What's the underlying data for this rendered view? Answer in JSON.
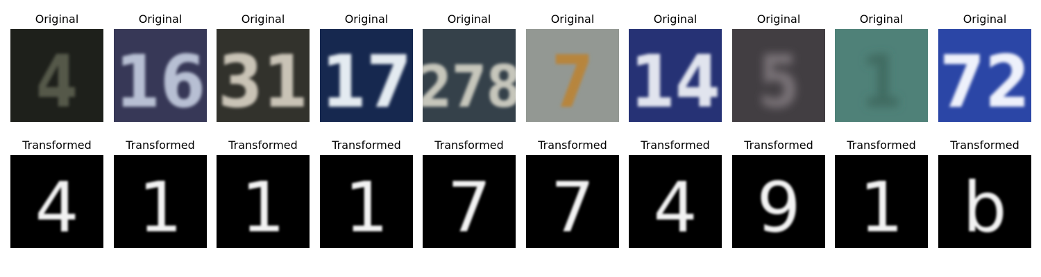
{
  "figure": {
    "top_row_title": "Original",
    "bottom_row_title": "Transformed"
  },
  "pairs": [
    {
      "original_digits": "4",
      "original_bg": "#23251f",
      "original_fg": "#55584a",
      "transformed_digit": "4"
    },
    {
      "original_digits": "16",
      "original_bg": "#3f4064",
      "original_fg": "#b7bfd3",
      "transformed_digit": "1"
    },
    {
      "original_digits": "31",
      "original_bg": "#3a3933",
      "original_fg": "#c9c3b6",
      "transformed_digit": "1"
    },
    {
      "original_digits": "17",
      "original_bg": "#1a2e5b",
      "original_fg": "#e4ebf1",
      "transformed_digit": "1"
    },
    {
      "original_digits": "278",
      "original_bg": "#3d4a55",
      "original_fg": "#c6c6bb",
      "transformed_digit": "7"
    },
    {
      "original_digits": "7",
      "original_bg": "#a8ada8",
      "original_fg": "#b7853c",
      "transformed_digit": "7"
    },
    {
      "original_digits": "14",
      "original_bg": "#2c3a86",
      "original_fg": "#e1e4ee",
      "transformed_digit": "4"
    },
    {
      "original_digits": "5",
      "original_bg": "#4c474c",
      "original_fg": "#7a7378",
      "transformed_digit": "9"
    },
    {
      "original_digits": "1",
      "original_bg": "#5b9389",
      "original_fg": "#3f6b60",
      "transformed_digit": "1"
    },
    {
      "original_digits": "72",
      "original_bg": "#3250bd",
      "original_fg": "#eef1fb",
      "transformed_digit": "b"
    }
  ]
}
